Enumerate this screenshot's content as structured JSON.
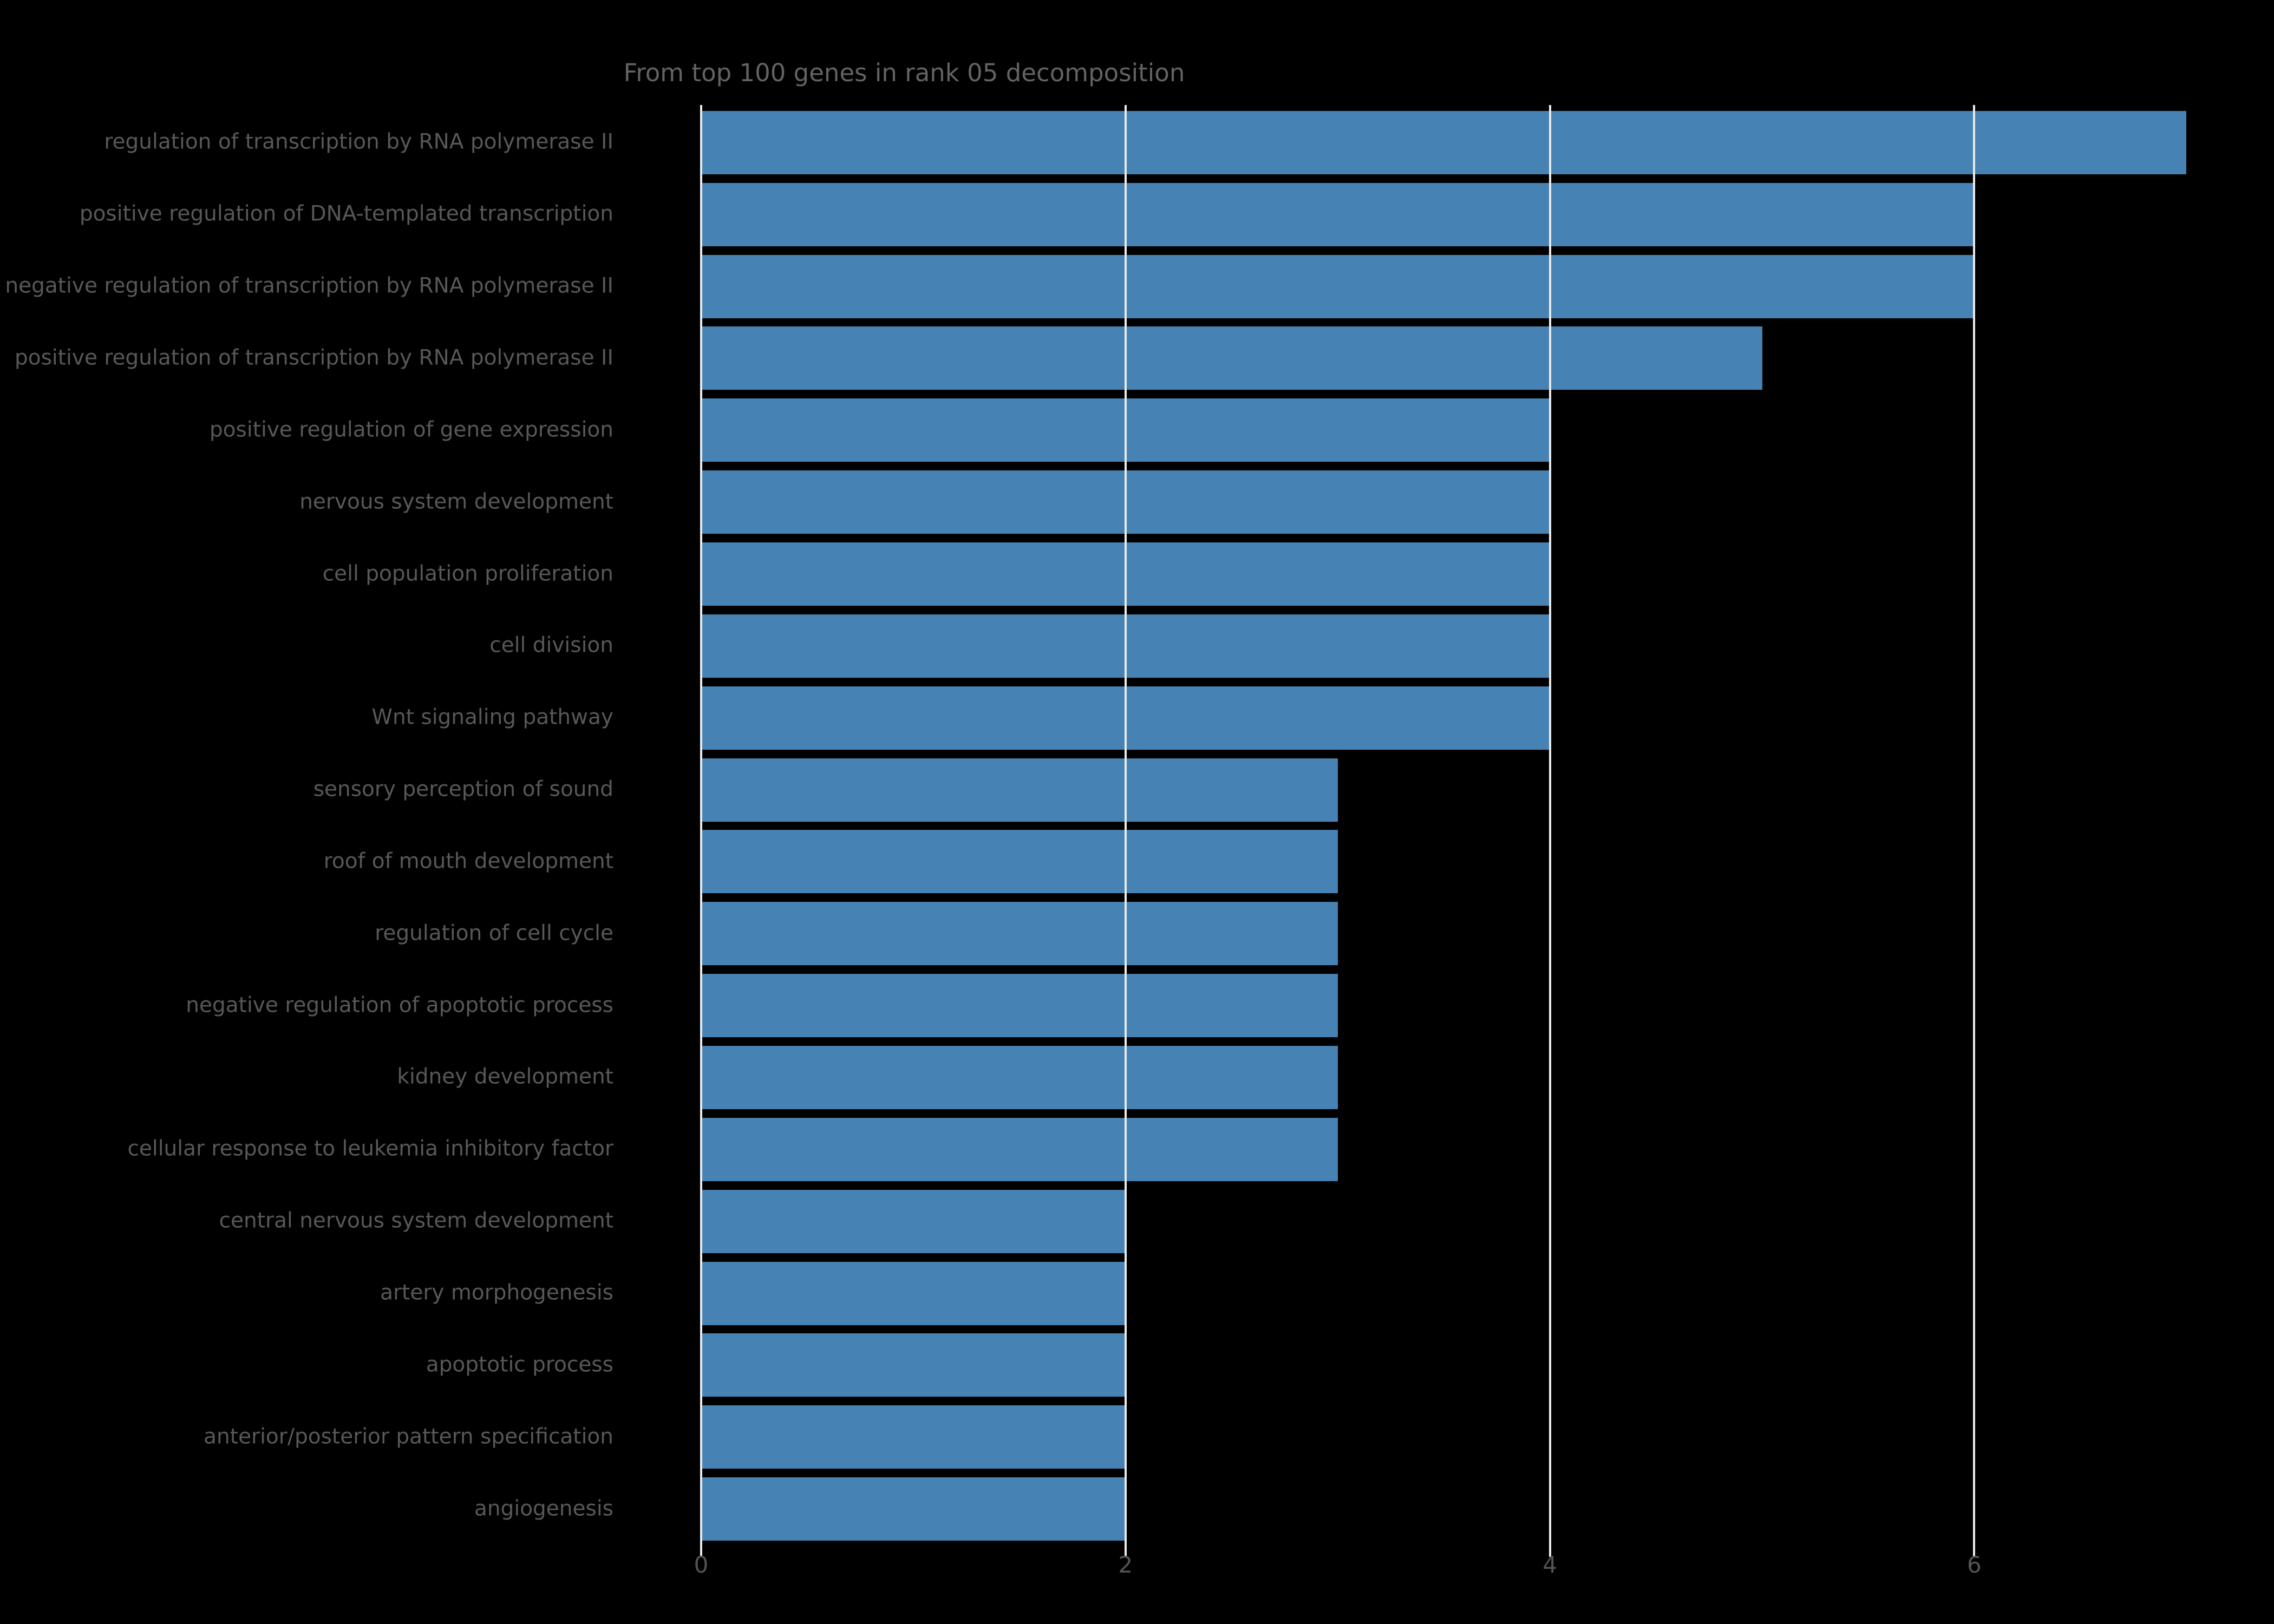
{
  "figure": {
    "background_color": "#000000",
    "title_color": "#636363",
    "label_color": "#585858",
    "tick_label_color": "#545454",
    "grid_color": "#EAEAEA",
    "bar_color": "#4682B4"
  },
  "chart_data": {
    "type": "bar",
    "orientation": "horizontal",
    "title": "From top 100 genes in rank 05 decomposition",
    "xlabel": "",
    "ylabel": "",
    "categories": [
      "regulation of transcription by RNA polymerase II",
      "positive regulation of DNA-templated transcription",
      "negative regulation of transcription by RNA polymerase II",
      "positive regulation of transcription by RNA polymerase II",
      "positive regulation of gene expression",
      "nervous system development",
      "cell population proliferation",
      "cell division",
      "Wnt signaling pathway",
      "sensory perception of sound",
      "roof of mouth development",
      "regulation of cell cycle",
      "negative regulation of apoptotic process",
      "kidney development",
      "cellular response to leukemia inhibitory factor",
      "central nervous system development",
      "artery morphogenesis",
      "apoptotic process",
      "anterior/posterior pattern specification",
      "angiogenesis"
    ],
    "values": [
      7,
      6,
      6,
      5,
      4,
      4,
      4,
      4,
      4,
      3,
      3,
      3,
      3,
      3,
      3,
      2,
      2,
      2,
      2,
      2
    ],
    "xticks": [
      0,
      2,
      4,
      6
    ],
    "xlim": [
      0,
      7.35
    ],
    "grid": true,
    "legend_position": "none"
  }
}
